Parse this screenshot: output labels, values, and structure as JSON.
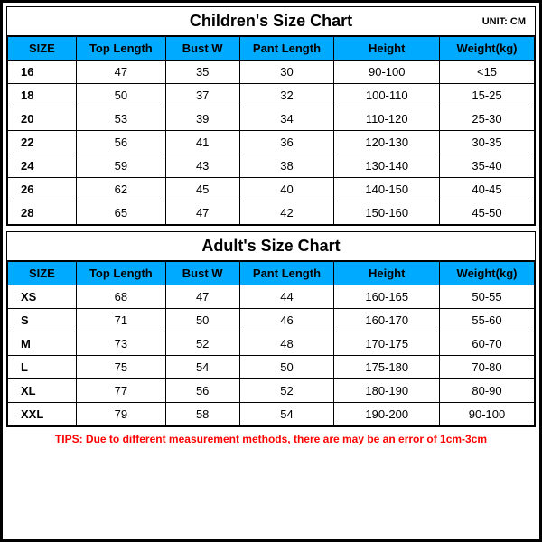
{
  "unit_label": "UNIT: CM",
  "columns": [
    "SIZE",
    "Top Length",
    "Bust W",
    "Pant Length",
    "Height",
    "Weight(kg)"
  ],
  "children": {
    "title": "Children's Size Chart",
    "rows": [
      [
        "16",
        "47",
        "35",
        "30",
        "90-100",
        "<15"
      ],
      [
        "18",
        "50",
        "37",
        "32",
        "100-110",
        "15-25"
      ],
      [
        "20",
        "53",
        "39",
        "34",
        "110-120",
        "25-30"
      ],
      [
        "22",
        "56",
        "41",
        "36",
        "120-130",
        "30-35"
      ],
      [
        "24",
        "59",
        "43",
        "38",
        "130-140",
        "35-40"
      ],
      [
        "26",
        "62",
        "45",
        "40",
        "140-150",
        "40-45"
      ],
      [
        "28",
        "65",
        "47",
        "42",
        "150-160",
        "45-50"
      ]
    ]
  },
  "adult": {
    "title": "Adult's Size Chart",
    "rows": [
      [
        "XS",
        "68",
        "47",
        "44",
        "160-165",
        "50-55"
      ],
      [
        "S",
        "71",
        "50",
        "46",
        "160-170",
        "55-60"
      ],
      [
        "M",
        "73",
        "52",
        "48",
        "170-175",
        "60-70"
      ],
      [
        "L",
        "75",
        "54",
        "50",
        "175-180",
        "70-80"
      ],
      [
        "XL",
        "77",
        "56",
        "52",
        "180-190",
        "80-90"
      ],
      [
        "XXL",
        "79",
        "58",
        "54",
        "190-200",
        "90-100"
      ]
    ]
  },
  "tips": "TIPS: Due to different measurement methods, there are may be an error of 1cm-3cm",
  "colors": {
    "header_bg": "#00aaff",
    "border": "#000000",
    "tips": "#ff0000",
    "background": "#ffffff"
  }
}
